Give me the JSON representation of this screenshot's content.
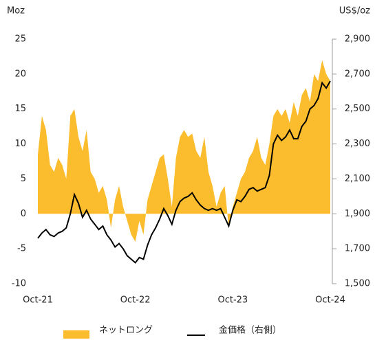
{
  "chart_data": {
    "type": "area",
    "ylabel": "Moz",
    "y2label": "US$/oz",
    "categories": [
      "Oct-21",
      null,
      null,
      null,
      null,
      null,
      null,
      null,
      null,
      null,
      null,
      null,
      null,
      null,
      null,
      null,
      null,
      null,
      null,
      null,
      null,
      null,
      null,
      null,
      "Oct-22",
      null,
      null,
      null,
      null,
      null,
      null,
      null,
      null,
      null,
      null,
      null,
      null,
      null,
      null,
      null,
      null,
      null,
      null,
      null,
      null,
      null,
      null,
      null,
      "Oct-23",
      null,
      null,
      null,
      null,
      null,
      null,
      null,
      null,
      null,
      null,
      null,
      null,
      null,
      null,
      null,
      null,
      null,
      null,
      null,
      null,
      null,
      null,
      null,
      "Oct-24"
    ],
    "series": [
      {
        "name": "ネットロング",
        "color": "#fbbc2d",
        "values": [
          8.5,
          14,
          12,
          7,
          6,
          8,
          7,
          5,
          14,
          15,
          11,
          9,
          12,
          6,
          5,
          3,
          4,
          2,
          -2,
          2,
          4,
          1,
          -1,
          -3,
          -4,
          -1,
          -3,
          2,
          4,
          6,
          8,
          8.5,
          5,
          1,
          8,
          11,
          12,
          11,
          11.5,
          9,
          8,
          11,
          6,
          4,
          1,
          3,
          4,
          -2,
          1,
          3,
          5,
          6,
          8,
          9,
          11,
          8,
          7,
          10,
          14,
          15,
          14,
          15,
          13,
          16,
          14,
          17,
          18,
          16,
          20,
          19,
          22,
          20,
          19
        ]
      },
      {
        "name": "金価格（右側）",
        "color": "#000000",
        "type": "line",
        "axis": "y2",
        "values": [
          1760,
          1790,
          1810,
          1780,
          1770,
          1790,
          1800,
          1820,
          1900,
          2010,
          1960,
          1880,
          1920,
          1870,
          1840,
          1810,
          1830,
          1780,
          1750,
          1710,
          1730,
          1700,
          1660,
          1640,
          1620,
          1650,
          1640,
          1720,
          1780,
          1820,
          1870,
          1930,
          1890,
          1840,
          1920,
          1970,
          1990,
          2000,
          2020,
          1980,
          1950,
          1930,
          1920,
          1930,
          1920,
          1930,
          1880,
          1830,
          1920,
          1980,
          1970,
          2000,
          2040,
          2050,
          2030,
          2040,
          2050,
          2120,
          2300,
          2350,
          2320,
          2340,
          2380,
          2330,
          2330,
          2400,
          2430,
          2500,
          2520,
          2560,
          2650,
          2620,
          2660
        ]
      }
    ],
    "ylim": [
      -10,
      25
    ],
    "yticks": [
      -10,
      -5,
      0,
      5,
      10,
      15,
      20,
      25
    ],
    "y2lim": [
      1500,
      2900
    ],
    "y2ticks": [
      {
        "value": 1500,
        "label": "1,500"
      },
      {
        "value": 1700,
        "label": "1,700"
      },
      {
        "value": 1900,
        "label": "1,900"
      },
      {
        "value": 2100,
        "label": "2,100"
      },
      {
        "value": 2300,
        "label": "2,300"
      },
      {
        "value": 2500,
        "label": "2,500"
      },
      {
        "value": 2700,
        "label": "2,700"
      },
      {
        "value": 2900,
        "label": "2,900"
      }
    ],
    "legend": "bottom"
  }
}
